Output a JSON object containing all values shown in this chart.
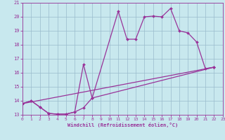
{
  "background_color": "#c8e8ee",
  "grid_color": "#99bbcc",
  "line_color": "#993399",
  "xlabel": "Windchill (Refroidissement éolien,°C)",
  "xlim": [
    0,
    23
  ],
  "ylim": [
    13,
    21
  ],
  "yticks": [
    13,
    14,
    15,
    16,
    17,
    18,
    19,
    20,
    21
  ],
  "xticks": [
    0,
    1,
    2,
    3,
    4,
    5,
    6,
    7,
    8,
    9,
    10,
    11,
    12,
    13,
    14,
    15,
    16,
    17,
    18,
    19,
    20,
    21,
    22,
    23
  ],
  "curve1_x": [
    0,
    1,
    2,
    3,
    4,
    5,
    6,
    7,
    8,
    11,
    12,
    13,
    14,
    15,
    16,
    17,
    18,
    19,
    20,
    21,
    22
  ],
  "curve1_y": [
    13.8,
    14.0,
    13.55,
    13.1,
    13.05,
    13.05,
    13.2,
    16.6,
    14.2,
    20.4,
    18.4,
    18.4,
    20.0,
    20.05,
    20.0,
    20.6,
    19.0,
    18.85,
    18.2,
    16.3,
    16.4
  ],
  "curve2_x": [
    0,
    1,
    2,
    3,
    4,
    5,
    6,
    7,
    8,
    22
  ],
  "curve2_y": [
    13.8,
    14.0,
    13.55,
    13.1,
    13.05,
    13.05,
    13.2,
    13.5,
    14.2,
    16.4
  ],
  "curve3_x": [
    0,
    22
  ],
  "curve3_y": [
    13.8,
    16.4
  ],
  "lw": 0.9,
  "ms": 2.0
}
